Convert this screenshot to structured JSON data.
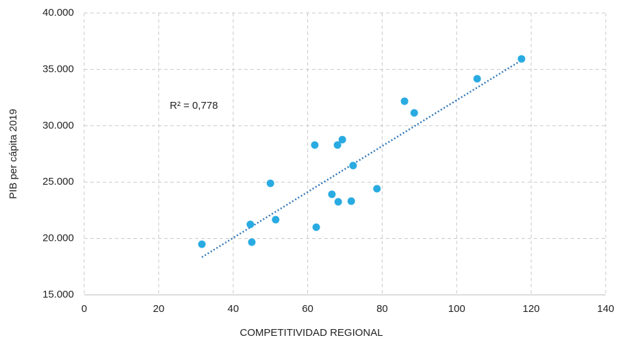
{
  "chart_data": {
    "type": "scatter",
    "xlabel": "COMPETITIVIDAD REGIONAL",
    "ylabel": "PIB per cápita 2019",
    "annotation": "R² = 0,778",
    "color": "#29abe2",
    "x": [
      31.6,
      44.6,
      45.0,
      50.0,
      51.4,
      61.9,
      62.3,
      66.5,
      68.0,
      68.2,
      69.3,
      71.7,
      72.2,
      78.6,
      86.0,
      88.6,
      105.5,
      117.4
    ],
    "values": [
      19490,
      21250,
      19670,
      24890,
      21670,
      28290,
      21000,
      23920,
      28290,
      23250,
      28770,
      23310,
      26470,
      24410,
      32170,
      31140,
      34170,
      35930
    ],
    "trendline": {
      "color": "#2e75b6",
      "x": [
        31.6,
        117.4
      ],
      "values": [
        18340,
        35810
      ]
    },
    "xlim": [
      0,
      140
    ],
    "xticks": [
      0,
      20,
      40,
      60,
      80,
      100,
      120,
      140
    ],
    "ylim": [
      15000,
      40000
    ],
    "yticks": [
      {
        "value": 15000,
        "label": "15.000"
      },
      {
        "value": 20000,
        "label": "20.000"
      },
      {
        "value": 25000,
        "label": "25.000"
      },
      {
        "value": 30000,
        "label": "30.000"
      },
      {
        "value": 35000,
        "label": "35.000"
      },
      {
        "value": 40000,
        "label": "40.000"
      }
    ],
    "grid": true
  }
}
